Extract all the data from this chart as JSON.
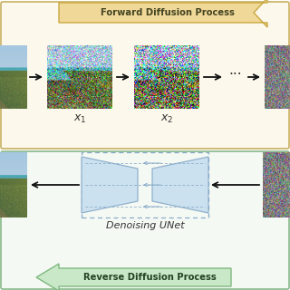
{
  "fig_bg": "#ffffff",
  "top_section_bg": "#fdf8ec",
  "bottom_section_bg": "#f4f9f4",
  "forward_arrow_fill": "#f0d898",
  "forward_arrow_edge": "#c8a840",
  "reverse_arrow_fill": "#c8e8c8",
  "reverse_arrow_edge": "#80b880",
  "forward_title": "Forward Diffusion Process",
  "reverse_title": "Reverse Diffusion Process",
  "unet_title": "Denoising UNet",
  "unet_fill": "#c8dff0",
  "unet_edge": "#88aac8",
  "top_border": "#c8b060",
  "bot_border": "#88b888",
  "arrow_color": "#111111",
  "label_color": "#333333",
  "dots_color": "#333333"
}
